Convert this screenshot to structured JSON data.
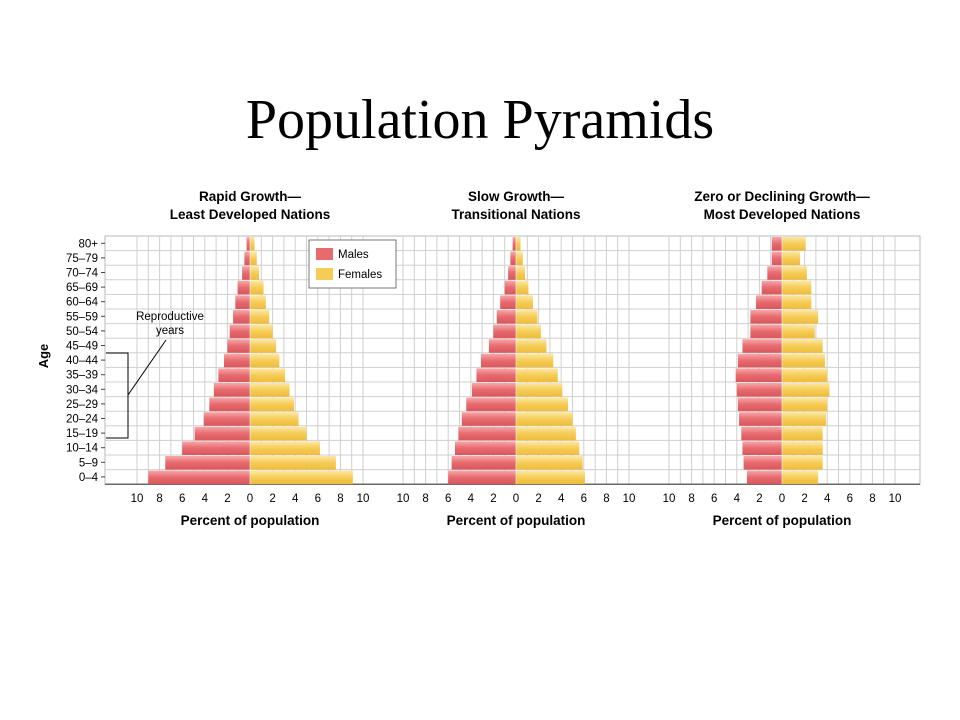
{
  "slide": {
    "title": "Population Pyramids"
  },
  "age_axis_label": "Age",
  "reproductive_label": "Reproductive years",
  "legend": {
    "males_label": "Males",
    "females_label": "Females",
    "males_color": "#e76a6e",
    "females_color": "#f6cc56"
  },
  "chart_data": [
    {
      "type": "bar",
      "orientation": "horizontal-mirrored",
      "title": "Rapid Growth— Least Developed Nations",
      "title_lines": [
        "Rapid Growth—",
        "Least Developed Nations"
      ],
      "xlabel": "Percent of population",
      "ylabel": "Age",
      "xlim": [
        -10,
        10
      ],
      "x_tick_labels": [
        "10",
        "8",
        "6",
        "4",
        "2",
        "0",
        "2",
        "4",
        "6",
        "8",
        "10"
      ],
      "categories": [
        "80+",
        "75–79",
        "70–74",
        "65–69",
        "60–64",
        "55–59",
        "50–54",
        "45–49",
        "40–44",
        "35–39",
        "30–34",
        "25–29",
        "20–24",
        "15–19",
        "10–14",
        "5–9",
        "0–4"
      ],
      "series": [
        {
          "name": "Males",
          "values": [
            0.3,
            0.5,
            0.7,
            1.1,
            1.3,
            1.5,
            1.8,
            2.0,
            2.3,
            2.8,
            3.2,
            3.6,
            4.1,
            4.9,
            6.0,
            7.5,
            9.0
          ]
        },
        {
          "name": "Females",
          "values": [
            0.4,
            0.6,
            0.8,
            1.2,
            1.4,
            1.7,
            2.0,
            2.3,
            2.6,
            3.1,
            3.5,
            3.9,
            4.3,
            5.0,
            6.2,
            7.6,
            9.1
          ]
        }
      ],
      "grid": true
    },
    {
      "type": "bar",
      "orientation": "horizontal-mirrored",
      "title": "Slow Growth— Transitional Nations",
      "title_lines": [
        "Slow Growth—",
        "Transitional Nations"
      ],
      "xlabel": "Percent of population",
      "ylabel": "Age",
      "xlim": [
        -10,
        10
      ],
      "x_tick_labels": [
        "10",
        "8",
        "6",
        "4",
        "2",
        "0",
        "2",
        "4",
        "6",
        "8",
        "10"
      ],
      "categories": [
        "80+",
        "75–79",
        "70–74",
        "65–69",
        "60–64",
        "55–59",
        "50–54",
        "45–49",
        "40–44",
        "35–39",
        "30–34",
        "25–29",
        "20–24",
        "15–19",
        "10–14",
        "5–9",
        "0–4"
      ],
      "series": [
        {
          "name": "Males",
          "values": [
            0.3,
            0.5,
            0.7,
            1.0,
            1.4,
            1.7,
            2.0,
            2.4,
            3.1,
            3.5,
            3.9,
            4.4,
            4.8,
            5.1,
            5.4,
            5.7,
            6.0
          ]
        },
        {
          "name": "Females",
          "values": [
            0.4,
            0.6,
            0.8,
            1.1,
            1.5,
            1.9,
            2.2,
            2.7,
            3.3,
            3.7,
            4.1,
            4.6,
            5.0,
            5.3,
            5.6,
            5.9,
            6.1
          ]
        }
      ],
      "grid": true
    },
    {
      "type": "bar",
      "orientation": "horizontal-mirrored",
      "title": "Zero or Declining Growth— Most Developed Nations",
      "title_lines": [
        "Zero or Declining Growth—",
        "Most Developed Nations"
      ],
      "xlabel": "Percent of population",
      "ylabel": "Age",
      "xlim": [
        -10,
        10
      ],
      "x_tick_labels": [
        "10",
        "8",
        "6",
        "4",
        "2",
        "0",
        "2",
        "4",
        "6",
        "8",
        "10"
      ],
      "categories": [
        "80+",
        "75–79",
        "70–74",
        "65–69",
        "60–64",
        "55–59",
        "50–54",
        "45–49",
        "40–44",
        "35–39",
        "30–34",
        "25–29",
        "20–24",
        "15–19",
        "10–14",
        "5–9",
        "0–4"
      ],
      "series": [
        {
          "name": "Males",
          "values": [
            0.9,
            0.9,
            1.3,
            1.8,
            2.3,
            2.8,
            2.8,
            3.5,
            3.9,
            4.1,
            4.0,
            3.9,
            3.8,
            3.6,
            3.5,
            3.4,
            3.1
          ]
        },
        {
          "name": "Females",
          "values": [
            2.1,
            1.6,
            2.2,
            2.6,
            2.6,
            3.2,
            2.9,
            3.6,
            3.8,
            4.0,
            4.2,
            4.0,
            3.9,
            3.6,
            3.6,
            3.6,
            3.2
          ]
        }
      ],
      "grid": true
    }
  ]
}
